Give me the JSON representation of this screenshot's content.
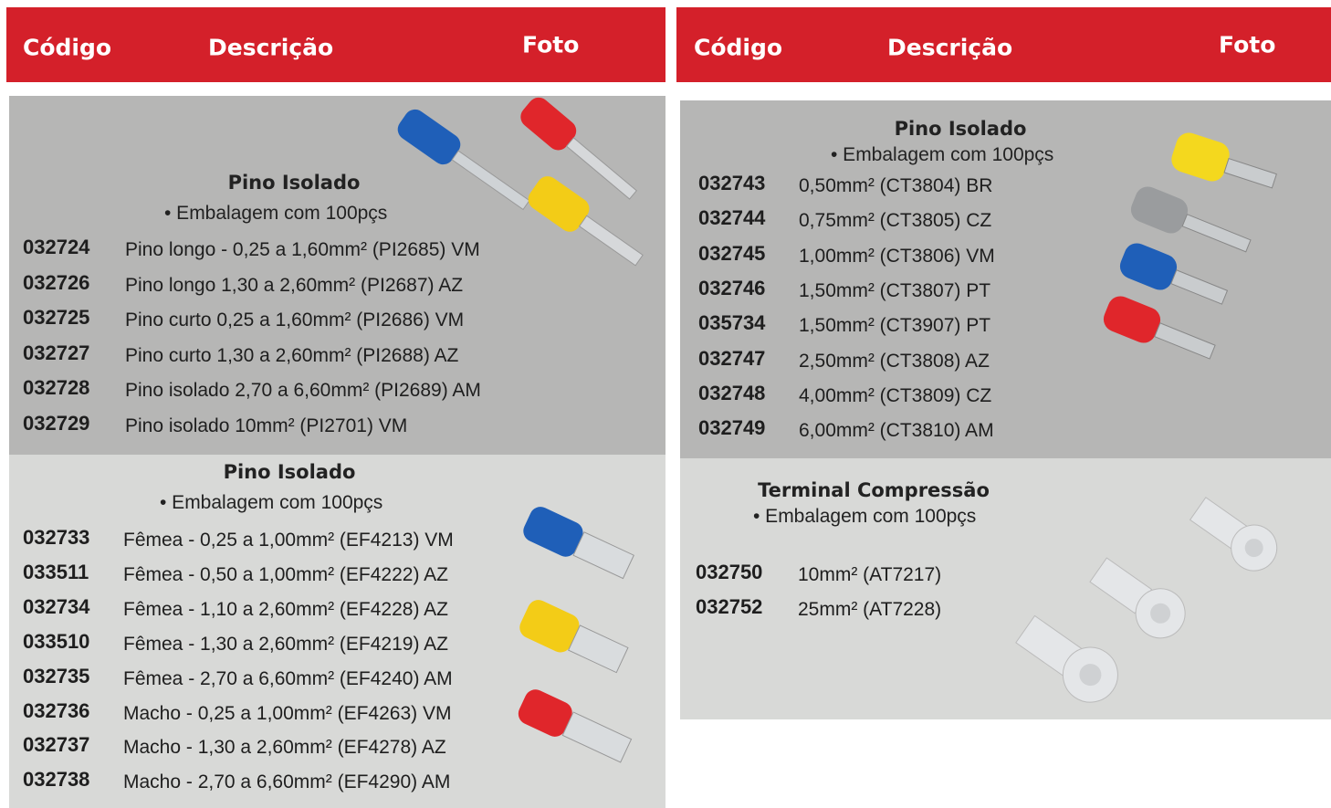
{
  "columns": [
    {
      "header": [
        "Código",
        "Descrição",
        "Foto"
      ],
      "sections": [
        {
          "title": "Pino Isolado",
          "note": "• Embalagem com 100pçs",
          "items": [
            {
              "code": "032724",
              "description": "Pino longo - 0,25 a 1,60mm² (PI2685) VM"
            },
            {
              "code": "032726",
              "description": "Pino longo 1,30 a 2,60mm² (PI2687) AZ"
            },
            {
              "code": "032725",
              "description": "Pino curto 0,25 a 1,60mm² (PI2686) VM"
            },
            {
              "code": "032727",
              "description": "Pino curto 1,30 a 2,60mm² (PI2688) AZ"
            },
            {
              "code": "032728",
              "description": "Pino isolado 2,70 a 6,60mm² (PI2689) AM"
            },
            {
              "code": "032729",
              "description": "Pino isolado 10mm² (PI2701) VM"
            }
          ]
        },
        {
          "title": "Pino Isolado",
          "note": "• Embalagem com 100pçs",
          "items": [
            {
              "code": "032733",
              "description": "Fêmea - 0,25 a 1,00mm² (EF4213) VM"
            },
            {
              "code": "033511",
              "description": "Fêmea - 0,50 a 1,00mm² (EF4222) AZ"
            },
            {
              "code": "032734",
              "description": "Fêmea - 1,10 a 2,60mm² (EF4228) AZ"
            },
            {
              "code": "033510",
              "description": "Fêmea - 1,30 a 2,60mm² (EF4219) AZ"
            },
            {
              "code": "032735",
              "description": "Fêmea - 2,70 a 6,60mm² (EF4240) AM"
            },
            {
              "code": "032736",
              "description": "Macho - 0,25 a 1,00mm² (EF4263) VM"
            },
            {
              "code": "032737",
              "description": "Macho - 1,30 a 2,60mm² (EF4278) AZ"
            },
            {
              "code": "032738",
              "description": "Macho - 2,70 a 6,60mm² (EF4290) AM"
            }
          ]
        }
      ]
    },
    {
      "header": [
        "Código",
        "Descrição",
        "Foto"
      ],
      "sections": [
        {
          "title": "Pino Isolado",
          "note": "• Embalagem com 100pçs",
          "items": [
            {
              "code": "032743",
              "description": "0,50mm² (CT3804) BR"
            },
            {
              "code": "032744",
              "description": "0,75mm² (CT3805) CZ"
            },
            {
              "code": "032745",
              "description": "1,00mm² (CT3806) VM"
            },
            {
              "code": "032746",
              "description": "1,50mm² (CT3807) PT"
            },
            {
              "code": "035734",
              "description": "1,50mm² (CT3907) PT"
            },
            {
              "code": "032747",
              "description": "2,50mm² (CT3808) AZ"
            },
            {
              "code": "032748",
              "description": "4,00mm² (CT3809) CZ"
            },
            {
              "code": "032749",
              "description": "6,00mm² (CT3810) AM"
            }
          ]
        },
        {
          "title": "Terminal Compressão",
          "note": "• Embalagem com 100pçs",
          "items": [
            {
              "code": "032750",
              "description": "10mm² (AT7217)"
            },
            {
              "code": "032752",
              "description": "25mm² (AT7228)"
            }
          ]
        }
      ]
    }
  ]
}
